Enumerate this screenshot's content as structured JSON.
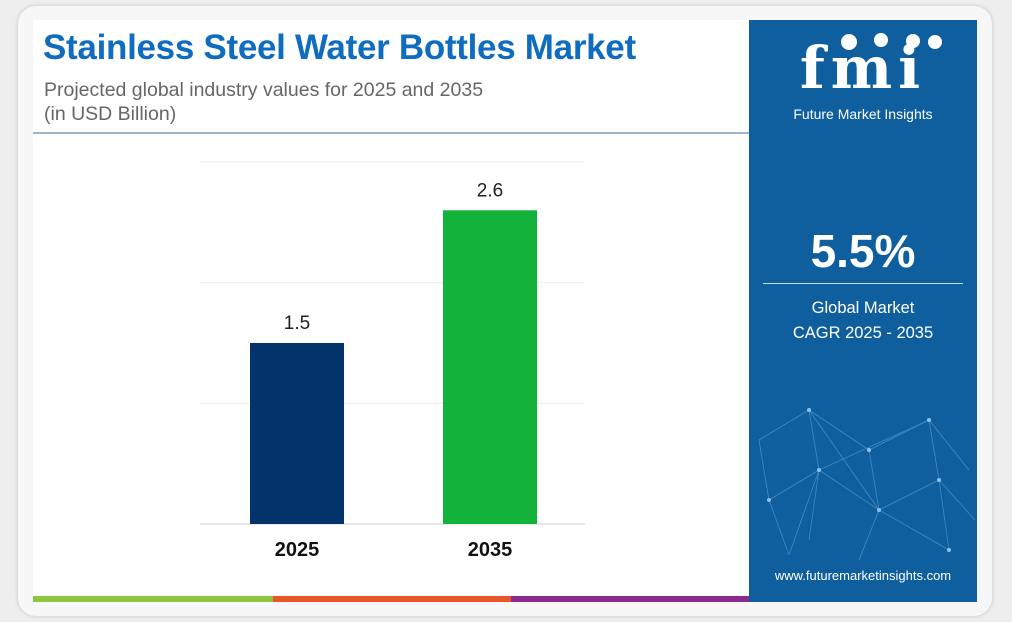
{
  "header": {
    "title": "Stainless Steel Water Bottles Market",
    "subtitle_line1": "Projected global industry values for 2025 and 2035",
    "subtitle_line2": "(in USD Billion)"
  },
  "chart_data": {
    "type": "bar",
    "title": "Stainless Steel Water Bottles Market",
    "subtitle": "Projected global industry values for 2025 and 2035 (in USD Billion)",
    "categories": [
      "2025",
      "2035"
    ],
    "values": [
      1.5,
      2.6
    ],
    "data_labels": [
      "1.5",
      "2.6"
    ],
    "bar_colors": [
      "#03336b",
      "#13b23a"
    ],
    "xlabel": "",
    "ylabel": "",
    "ylim": [
      0,
      3.0
    ],
    "grid": true,
    "legend": "none"
  },
  "sidebar": {
    "logo_letters": "fmi",
    "logo_tagline": "Future Market Insights",
    "cagr_value": "5.5%",
    "cagr_label_line1": "Global Market",
    "cagr_label_line2": "CAGR 2025 - 2035",
    "website": "www.futuremarketinsights.com"
  },
  "colors": {
    "title": "#0f6cbf",
    "sidebar_bg": "#0f5f9f",
    "strip": [
      "#8dc63f",
      "#e8562a",
      "#8e2a8e"
    ]
  }
}
